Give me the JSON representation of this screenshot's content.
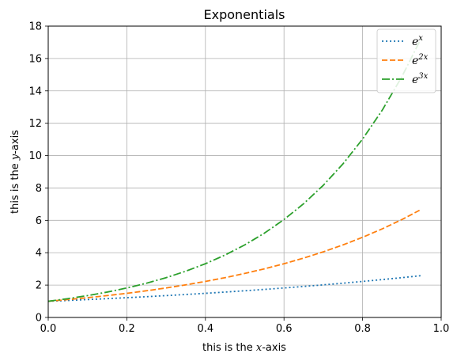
{
  "chart_data": {
    "type": "line",
    "title": "Exponentials",
    "xlabel": {
      "prefix": "this is the ",
      "var": "x",
      "suffix": "-axis"
    },
    "ylabel": {
      "prefix": "this is the ",
      "var": "y",
      "suffix": "-axis"
    },
    "xlim": [
      0.0,
      1.0
    ],
    "ylim": [
      0,
      18
    ],
    "x_ticks": [
      "0.0",
      "0.2",
      "0.4",
      "0.6",
      "0.8",
      "1.0"
    ],
    "y_ticks": [
      "0",
      "2",
      "4",
      "6",
      "8",
      "10",
      "12",
      "14",
      "16",
      "18"
    ],
    "grid": true,
    "legend_position": "top-right",
    "x": [
      0.0,
      0.05,
      0.1,
      0.15,
      0.2,
      0.25,
      0.3,
      0.35,
      0.4,
      0.45,
      0.5,
      0.55,
      0.6,
      0.65,
      0.7,
      0.75,
      0.8,
      0.85,
      0.9,
      0.95
    ],
    "series": [
      {
        "name": "e^x",
        "base": "e",
        "exp": "x",
        "color": "#1f77b4",
        "dash": "2,3",
        "values": [
          1.0,
          1.051,
          1.105,
          1.162,
          1.221,
          1.284,
          1.35,
          1.419,
          1.492,
          1.568,
          1.649,
          1.733,
          1.822,
          1.916,
          2.014,
          2.117,
          2.226,
          2.34,
          2.46,
          2.586
        ]
      },
      {
        "name": "e^2x",
        "base": "e",
        "exp": "2x",
        "color": "#ff7f0e",
        "dash": "7,3",
        "values": [
          1.0,
          1.105,
          1.221,
          1.35,
          1.492,
          1.649,
          1.822,
          2.014,
          2.226,
          2.46,
          2.718,
          3.004,
          3.32,
          3.669,
          4.055,
          4.482,
          4.953,
          5.474,
          6.05,
          6.686
        ]
      },
      {
        "name": "e^3x",
        "base": "e",
        "exp": "3x",
        "color": "#2ca02c",
        "dash": "10,3,2,3",
        "values": [
          1.0,
          1.162,
          1.35,
          1.568,
          1.822,
          2.117,
          2.46,
          2.858,
          3.32,
          3.857,
          4.482,
          5.207,
          6.05,
          7.029,
          8.166,
          9.488,
          11.023,
          12.807,
          14.88,
          17.288
        ]
      }
    ]
  }
}
